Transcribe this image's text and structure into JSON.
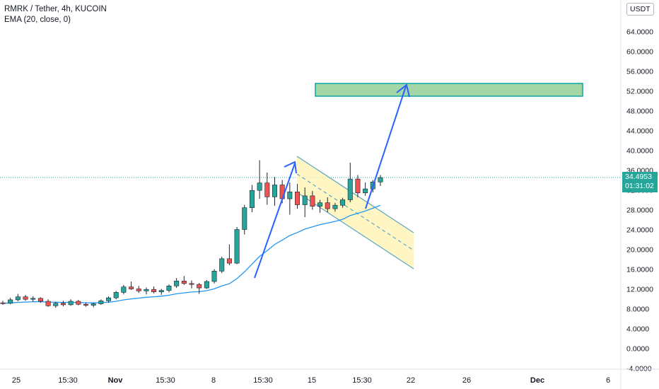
{
  "legend": {
    "symbol": "RMRK / Tether, 4h, KUCOIN",
    "indicator": "EMA (20, close, 0)"
  },
  "currency": "USDT",
  "last_price": "34.4953",
  "countdown": "01:31:02",
  "colors": {
    "up": "#26a69a",
    "down": "#ef5350",
    "ema": "#2196f3",
    "arrow": "#2962ff",
    "channel_fill": "#fff3b0",
    "channel_border": "#5fa8c9",
    "target_fill": "#a5d6a7",
    "target_border": "#0fa3a3",
    "price_line": "#26a69a"
  },
  "chart_data": {
    "type": "candlestick",
    "title": "RMRK / Tether, 4h, KUCOIN",
    "ylim": [
      -4.5,
      68
    ],
    "yticks": [
      "-4.0000",
      "0.0000",
      "4.0000",
      "8.0000",
      "12.0000",
      "16.0000",
      "20.0000",
      "24.0000",
      "28.0000",
      "32.0000",
      "36.0000",
      "40.0000",
      "44.0000",
      "48.0000",
      "52.0000",
      "56.0000",
      "60.0000",
      "64.0000"
    ],
    "xticks": [
      "25",
      "15:30",
      "Nov",
      "15:30",
      "8",
      "15:30",
      "15",
      "15:30",
      "22",
      "26",
      "Dec",
      "6"
    ],
    "last_price": 34.4953,
    "ema_label": "EMA (20, close, 0)",
    "ohlc_points": [
      [
        9.2,
        9.6,
        8.8,
        9.1
      ],
      [
        9.1,
        10.2,
        8.9,
        9.8
      ],
      [
        9.8,
        11.0,
        9.5,
        10.4
      ],
      [
        10.4,
        10.8,
        9.6,
        9.9
      ],
      [
        9.9,
        10.5,
        9.4,
        10.1
      ],
      [
        10.1,
        10.3,
        9.2,
        9.5
      ],
      [
        9.5,
        9.9,
        8.4,
        8.6
      ],
      [
        8.6,
        9.4,
        8.2,
        9.1
      ],
      [
        9.1,
        9.6,
        8.5,
        8.8
      ],
      [
        8.8,
        9.9,
        8.6,
        9.5
      ],
      [
        9.5,
        9.8,
        8.7,
        8.9
      ],
      [
        8.9,
        9.3,
        8.4,
        8.7
      ],
      [
        8.7,
        9.2,
        8.3,
        9.0
      ],
      [
        9.0,
        9.9,
        8.8,
        9.6
      ],
      [
        9.6,
        10.5,
        9.2,
        10.2
      ],
      [
        10.2,
        11.6,
        9.9,
        11.3
      ],
      [
        11.3,
        12.8,
        10.9,
        12.4
      ],
      [
        12.4,
        13.5,
        11.8,
        12.0
      ],
      [
        12.0,
        12.6,
        11.2,
        11.6
      ],
      [
        11.6,
        12.3,
        10.9,
        11.9
      ],
      [
        11.9,
        12.5,
        11.1,
        11.4
      ],
      [
        11.4,
        12.0,
        10.8,
        11.7
      ],
      [
        11.7,
        12.9,
        11.3,
        12.6
      ],
      [
        12.6,
        14.2,
        12.2,
        13.6
      ],
      [
        13.6,
        14.6,
        12.8,
        13.1
      ],
      [
        13.1,
        13.7,
        12.1,
        12.9
      ],
      [
        12.9,
        13.2,
        11.0,
        12.2
      ],
      [
        12.2,
        13.8,
        12.0,
        13.5
      ],
      [
        13.5,
        16.0,
        13.1,
        15.6
      ],
      [
        15.6,
        18.5,
        15.2,
        18.1
      ],
      [
        18.1,
        21.0,
        16.8,
        17.2
      ],
      [
        17.2,
        24.5,
        17.0,
        24.0
      ],
      [
        24.0,
        29.0,
        23.0,
        28.4
      ],
      [
        28.4,
        33.0,
        27.5,
        31.9
      ],
      [
        31.9,
        38.0,
        30.2,
        33.4
      ],
      [
        33.4,
        35.5,
        29.0,
        30.6
      ],
      [
        30.6,
        34.6,
        28.8,
        33.0
      ],
      [
        33.0,
        34.0,
        29.3,
        30.2
      ],
      [
        30.2,
        33.5,
        27.0,
        31.6
      ],
      [
        31.6,
        33.2,
        28.2,
        29.0
      ],
      [
        29.0,
        32.5,
        26.5,
        30.8
      ],
      [
        30.8,
        31.8,
        28.0,
        28.7
      ],
      [
        28.7,
        30.0,
        27.4,
        29.4
      ],
      [
        29.4,
        30.5,
        27.5,
        28.2
      ],
      [
        28.2,
        29.4,
        27.6,
        28.9
      ],
      [
        28.9,
        30.4,
        28.4,
        30.0
      ],
      [
        30.0,
        37.5,
        29.5,
        34.2
      ],
      [
        34.2,
        35.0,
        30.5,
        31.4
      ],
      [
        31.4,
        33.5,
        30.8,
        32.2
      ],
      [
        32.2,
        34.0,
        31.5,
        33.6
      ],
      [
        33.6,
        35.0,
        32.8,
        34.4953
      ]
    ]
  }
}
